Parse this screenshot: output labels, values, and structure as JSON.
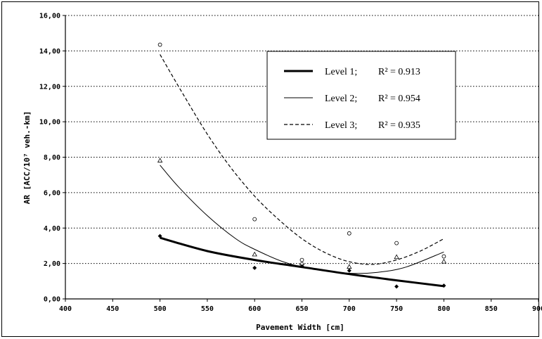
{
  "chart_data": {
    "type": "scatter",
    "xlabel": "Pavement Width [cm]",
    "ylabel": "AR [ACC/10⁷ veh.-km]",
    "xlim": [
      400,
      900
    ],
    "ylim": [
      0,
      16
    ],
    "x_ticks": [
      "400",
      "450",
      "500",
      "550",
      "600",
      "650",
      "700",
      "750",
      "800",
      "850",
      "900"
    ],
    "y_ticks": [
      "0,00",
      "2,00",
      "4,00",
      "6,00",
      "8,00",
      "10,00",
      "12,00",
      "14,00",
      "16,00"
    ],
    "grid": "horizontal dotted",
    "legend_position": "top-right",
    "series": [
      {
        "name": "Level 1;",
        "r2_label": "R² = 0.913",
        "style": "thick-solid",
        "marker": "filled-diamond",
        "points": [
          [
            500,
            3.55
          ],
          [
            600,
            1.75
          ],
          [
            650,
            1.85
          ],
          [
            700,
            1.6
          ],
          [
            750,
            0.7
          ],
          [
            800,
            0.75
          ]
        ],
        "fit": [
          [
            500,
            3.45
          ],
          [
            550,
            2.7
          ],
          [
            600,
            2.2
          ],
          [
            650,
            1.8
          ],
          [
            700,
            1.4
          ],
          [
            750,
            1.05
          ],
          [
            800,
            0.72
          ]
        ]
      },
      {
        "name": "Level 2;",
        "r2_label": "R² = 0.954",
        "style": "thin-solid",
        "marker": "open-triangle",
        "points": [
          [
            500,
            7.8
          ],
          [
            600,
            2.5
          ],
          [
            650,
            2.0
          ],
          [
            700,
            1.8
          ],
          [
            750,
            2.35
          ],
          [
            800,
            2.1
          ]
        ],
        "fit": [
          [
            500,
            7.55
          ],
          [
            520,
            6.3
          ],
          [
            550,
            4.7
          ],
          [
            580,
            3.4
          ],
          [
            600,
            2.8
          ],
          [
            630,
            2.1
          ],
          [
            660,
            1.7
          ],
          [
            700,
            1.45
          ],
          [
            730,
            1.5
          ],
          [
            760,
            1.8
          ],
          [
            800,
            2.65
          ]
        ]
      },
      {
        "name": "Level 3;",
        "r2_label": "R² = 0.935",
        "style": "dashed",
        "marker": "open-circle",
        "points": [
          [
            500,
            14.35
          ],
          [
            600,
            4.5
          ],
          [
            650,
            2.2
          ],
          [
            700,
            3.7
          ],
          [
            750,
            3.15
          ],
          [
            800,
            2.4
          ]
        ],
        "fit": [
          [
            500,
            13.8
          ],
          [
            525,
            11.5
          ],
          [
            550,
            9.3
          ],
          [
            575,
            7.4
          ],
          [
            600,
            5.8
          ],
          [
            625,
            4.5
          ],
          [
            650,
            3.4
          ],
          [
            675,
            2.6
          ],
          [
            700,
            2.1
          ],
          [
            725,
            1.95
          ],
          [
            750,
            2.2
          ],
          [
            775,
            2.7
          ],
          [
            800,
            3.4
          ]
        ]
      }
    ]
  }
}
